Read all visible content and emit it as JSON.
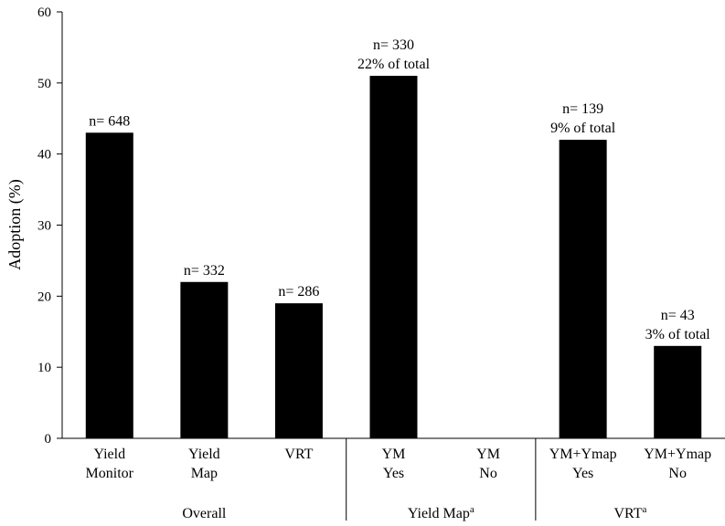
{
  "chart_data": {
    "type": "bar",
    "ylabel": "Adoption (%)",
    "ylim": [
      0,
      60
    ],
    "yticks": [
      0,
      10,
      20,
      30,
      40,
      50,
      60
    ],
    "grid": false,
    "legend": "none",
    "bar_color": "#000000",
    "categories": [
      {
        "lines": [
          "Yield",
          "Monitor"
        ],
        "value": 43,
        "annotation": [
          "n= 648"
        ]
      },
      {
        "lines": [
          "Yield",
          "Map"
        ],
        "value": 22,
        "annotation": [
          "n= 332"
        ]
      },
      {
        "lines": [
          "VRT"
        ],
        "value": 19,
        "annotation": [
          "n= 286"
        ]
      },
      {
        "lines": [
          "YM",
          "Yes"
        ],
        "value": 51,
        "annotation": [
          "n= 330",
          "22% of total"
        ]
      },
      {
        "lines": [
          "YM",
          "No"
        ],
        "value": null,
        "annotation": []
      },
      {
        "lines": [
          "YM+Ymap",
          "Yes"
        ],
        "value": 42,
        "annotation": [
          "n= 139",
          "9% of total"
        ]
      },
      {
        "lines": [
          "YM+Ymap",
          "No"
        ],
        "value": 13,
        "annotation": [
          "n= 43",
          "3% of total"
        ]
      }
    ],
    "groups": [
      {
        "label": "Overall",
        "superscript": "",
        "members": [
          0,
          1,
          2
        ]
      },
      {
        "label": "Yield Map",
        "superscript": "a",
        "members": [
          3,
          4
        ]
      },
      {
        "label": "VRT",
        "superscript": "a",
        "members": [
          5,
          6
        ]
      }
    ]
  }
}
